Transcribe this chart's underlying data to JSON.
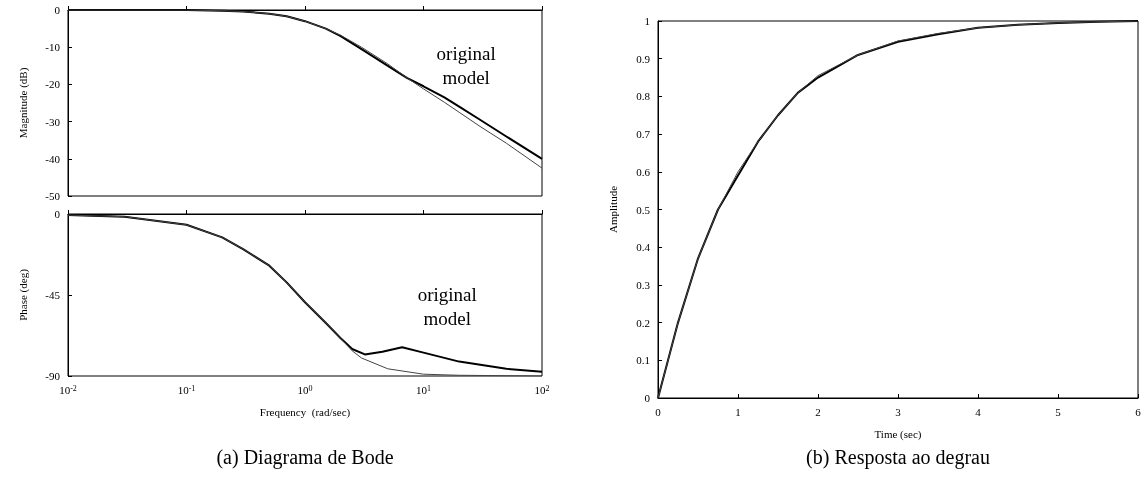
{
  "chart_data": [
    {
      "type": "line",
      "ylabel": "Magnitude (dB)",
      "log": "x",
      "xlim": [
        0.01,
        100
      ],
      "ylim": [
        -50,
        0
      ],
      "xticks": [
        {
          "value": 0.01,
          "label": null
        },
        {
          "value": 0.1,
          "label": null
        },
        {
          "value": 1,
          "label": null
        },
        {
          "value": 10,
          "label": null
        },
        {
          "value": 100,
          "label": null
        }
      ],
      "yticks": [
        -50,
        -40,
        -30,
        -20,
        -10,
        0
      ],
      "tick_labels": "y",
      "x": [
        0.01,
        0.03,
        0.1,
        0.2,
        0.3,
        0.5,
        0.7,
        1,
        1.5,
        2,
        3,
        5,
        7.3,
        10,
        15,
        20,
        30,
        50,
        100
      ],
      "series": [
        {
          "color": "#000000",
          "values": [
            0,
            0,
            0,
            -0.2,
            -0.4,
            -1,
            -1.7,
            -3,
            -5,
            -7,
            -10.5,
            -15,
            -18.3,
            -20.5,
            -23.5,
            -26,
            -29.5,
            -34,
            -40
          ]
        },
        {
          "color": "#444444",
          "values": [
            0,
            0,
            0,
            -0.2,
            -0.4,
            -1,
            -1.7,
            -3,
            -5,
            -6.8,
            -10,
            -14.5,
            -18.3,
            -21.2,
            -24.8,
            -27.5,
            -31.3,
            -35.8,
            -42.5
          ]
        }
      ],
      "annotations": [
        "original\nmodel"
      ]
    },
    {
      "type": "line",
      "xlabel": "Frequency  (rad/sec)",
      "ylabel": "Phase (deg)",
      "log": "x",
      "xlim": [
        0.01,
        100
      ],
      "ylim": [
        -90,
        0
      ],
      "xticks": [
        {
          "value": 0.01,
          "label": "10$^{-2}$"
        },
        {
          "value": 0.1,
          "label": "10$^{-1}$"
        },
        {
          "value": 1,
          "label": "10$^{0}$"
        },
        {
          "value": 10,
          "label": "10$^{1}$"
        },
        {
          "value": 100,
          "label": "10$^{2}$"
        }
      ],
      "yticks": [
        -90,
        -45,
        0
      ],
      "series": [
        {
          "color": "#000000",
          "x": [
            0.01,
            0.03,
            0.1,
            0.2,
            0.3,
            0.5,
            0.7,
            1,
            1.5,
            2,
            2.5,
            3.2,
            4.5,
            6.6,
            10,
            20,
            50,
            100
          ],
          "values": [
            -0.6,
            -1.5,
            -6,
            -13,
            -19.5,
            -28.7,
            -38,
            -49,
            -60.6,
            -69,
            -75,
            -78,
            -76.5,
            -74,
            -77,
            -82,
            -86,
            -87.7
          ]
        },
        {
          "color": "#444444",
          "x": [
            0.01,
            0.03,
            0.1,
            0.2,
            0.3,
            0.5,
            0.7,
            1,
            1.5,
            2,
            2.5,
            3,
            5,
            10,
            20,
            100
          ],
          "values": [
            -0.6,
            -1.5,
            -6,
            -13,
            -19.5,
            -28.7,
            -38,
            -49,
            -60.6,
            -69,
            -76,
            -80,
            -86,
            -89,
            -89.6,
            -90
          ]
        }
      ],
      "annotations": [
        "original\nmodel"
      ],
      "title": "(a) Diagrama de Bode"
    },
    {
      "type": "line",
      "xlabel": "Time (sec)",
      "ylabel": "Amplitude",
      "xlim": [
        0,
        6
      ],
      "ylim": [
        0,
        1
      ],
      "xticks": [
        0,
        1,
        2,
        3,
        4,
        5,
        6
      ],
      "yticks": [
        0,
        0.1,
        0.2,
        0.3,
        0.4,
        0.5,
        0.6,
        0.7,
        0.8,
        0.9,
        1
      ],
      "x": [
        0,
        0.25,
        0.5,
        0.75,
        1,
        1.25,
        1.5,
        1.75,
        2,
        2.5,
        3,
        3.5,
        4,
        4.5,
        5,
        5.5,
        6
      ],
      "series": [
        {
          "color": "#000000",
          "values": [
            0,
            0.2,
            0.37,
            0.5,
            0.59,
            0.68,
            0.75,
            0.81,
            0.85,
            0.91,
            0.945,
            0.965,
            0.982,
            0.99,
            0.995,
            0.998,
            1
          ]
        },
        {
          "color": "#444444",
          "values": [
            0,
            0.2,
            0.37,
            0.5,
            0.6,
            0.68,
            0.75,
            0.81,
            0.855,
            0.91,
            0.947,
            0.967,
            0.982,
            0.99,
            0.995,
            0.998,
            1
          ]
        }
      ],
      "title": "(b) Resposta ao degrau"
    }
  ]
}
